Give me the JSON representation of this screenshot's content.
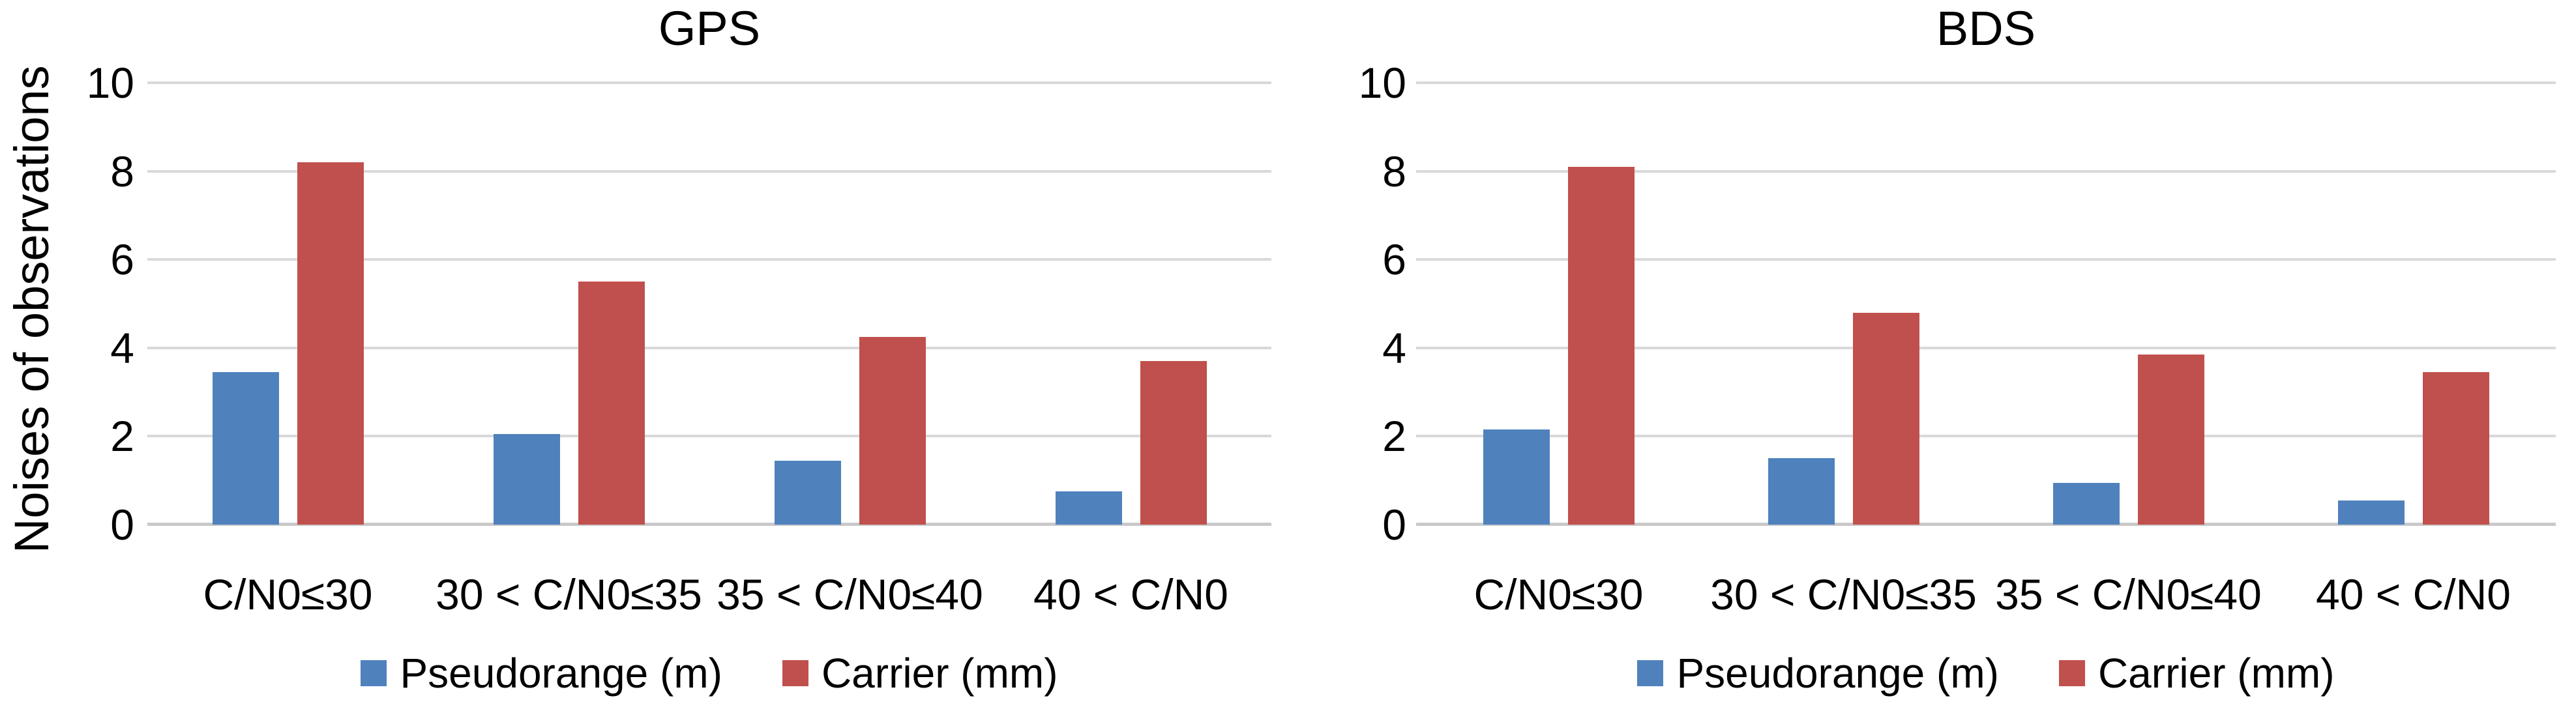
{
  "figure": {
    "y_axis_title": "Noises of observations",
    "background": "#FFFFFF",
    "text_color": "#000000",
    "gridline_color": "#D9D9D9",
    "axis_line_color": "#C9C9C9"
  },
  "chart_data": [
    {
      "type": "bar",
      "title": "GPS",
      "categories": [
        "C/N0≤30",
        "30 < C/N0≤35",
        "35 < C/N0≤40",
        "40 < C/N0"
      ],
      "series": [
        {
          "name": "Pseudorange (m)",
          "color": "#4F81BD",
          "values": [
            3.45,
            2.05,
            1.45,
            0.75
          ]
        },
        {
          "name": "Carrier (mm)",
          "color": "#C0504D",
          "values": [
            8.2,
            5.5,
            4.25,
            3.7
          ]
        }
      ],
      "xlabel": "",
      "ylabel": "Noises of observations",
      "ylim": [
        0,
        10
      ],
      "yticks": [
        0,
        2,
        4,
        6,
        8,
        10
      ],
      "grid": true,
      "legend_position": "bottom"
    },
    {
      "type": "bar",
      "title": "BDS",
      "categories": [
        "C/N0≤30",
        "30 < C/N0≤35",
        "35 < C/N0≤40",
        "40 < C/N0"
      ],
      "series": [
        {
          "name": "Pseudorange (m)",
          "color": "#4F81BD",
          "values": [
            2.15,
            1.5,
            0.95,
            0.55
          ]
        },
        {
          "name": "Carrier (mm)",
          "color": "#C0504D",
          "values": [
            8.1,
            4.8,
            3.85,
            3.45
          ]
        }
      ],
      "xlabel": "",
      "ylabel": "",
      "ylim": [
        0,
        10
      ],
      "yticks": [
        0,
        2,
        4,
        6,
        8,
        10
      ],
      "grid": true,
      "legend_position": "bottom"
    }
  ]
}
